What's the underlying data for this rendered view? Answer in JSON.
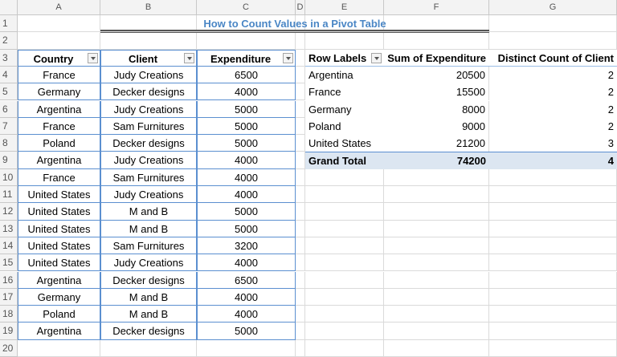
{
  "column_headers": [
    "A",
    "B",
    "C",
    "D",
    "E",
    "F",
    "G"
  ],
  "row_numbers": [
    1,
    2,
    3,
    4,
    5,
    6,
    7,
    8,
    9,
    10,
    11,
    12,
    13,
    14,
    15,
    16,
    17,
    18,
    19,
    20
  ],
  "title": "How to Count Values in a Pivot Table",
  "table": {
    "headers": [
      "Country",
      "Client",
      "Expenditure"
    ],
    "rows": [
      [
        "France",
        "Judy Creations",
        6500
      ],
      [
        "Germany",
        "Decker designs",
        4000
      ],
      [
        "Argentina",
        "Judy Creations",
        5000
      ],
      [
        "France",
        "Sam Furnitures",
        5000
      ],
      [
        "Poland",
        "Decker designs",
        5000
      ],
      [
        "Argentina",
        "Judy Creations",
        4000
      ],
      [
        "France",
        "Sam Furnitures",
        4000
      ],
      [
        "United States",
        "Judy Creations",
        4000
      ],
      [
        "United States",
        "M and B",
        5000
      ],
      [
        "United States",
        "M and B",
        5000
      ],
      [
        "United States",
        "Sam Furnitures",
        3200
      ],
      [
        "United States",
        "Judy Creations",
        4000
      ],
      [
        "Argentina",
        "Decker designs",
        6500
      ],
      [
        "Germany",
        "M and B",
        4000
      ],
      [
        "Poland",
        "M and B",
        4000
      ],
      [
        "Argentina",
        "Decker designs",
        5000
      ]
    ]
  },
  "pivot": {
    "headers": [
      "Row Labels",
      "Sum of Expenditure",
      "Distinct Count of Client"
    ],
    "rows": [
      [
        "Argentina",
        20500,
        2
      ],
      [
        "France",
        15500,
        2
      ],
      [
        "Germany",
        8000,
        2
      ],
      [
        "Poland",
        9000,
        2
      ],
      [
        "United States",
        21200,
        3
      ]
    ],
    "grand_total": [
      "Grand Total",
      74200,
      4
    ]
  }
}
